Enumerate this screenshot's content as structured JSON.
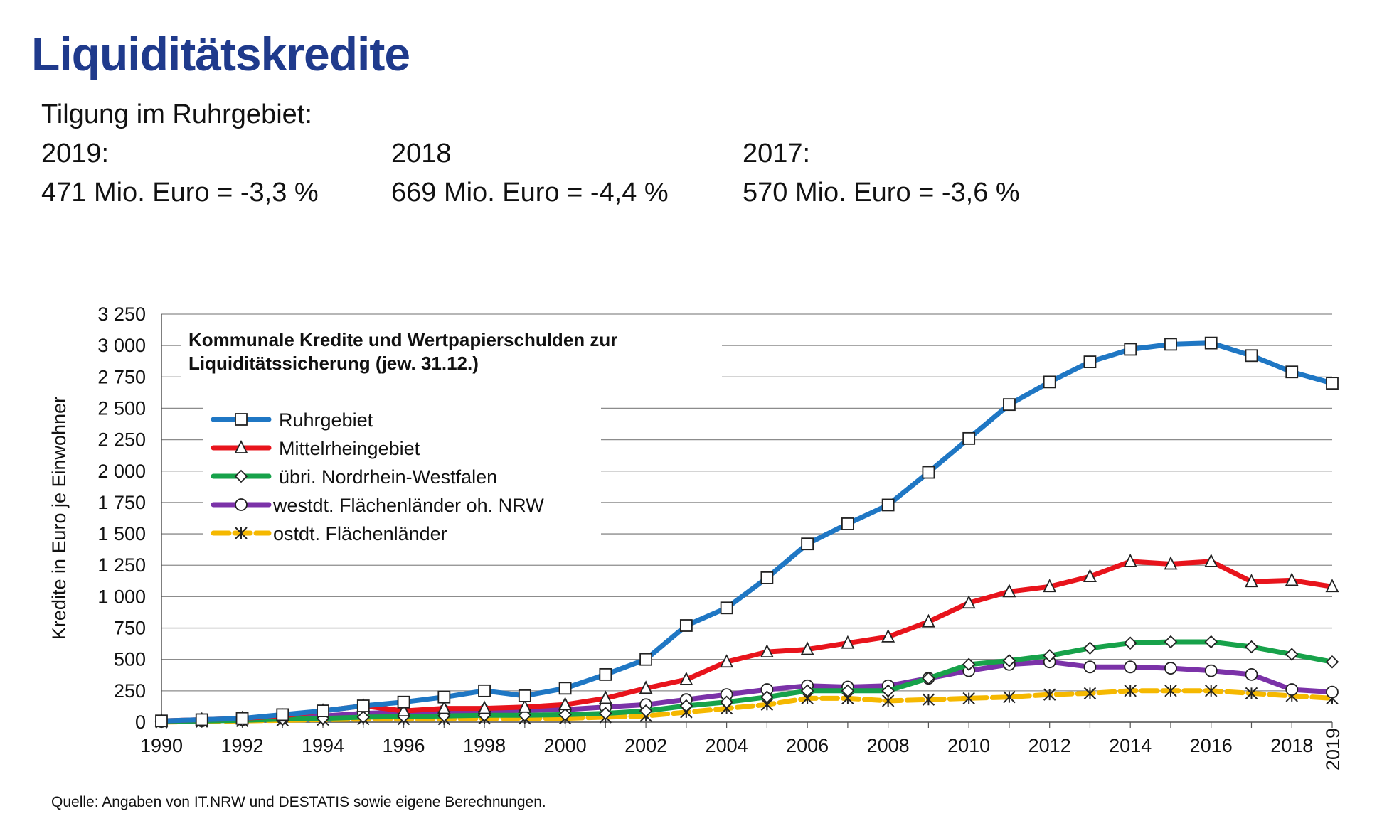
{
  "page": {
    "title": "Liquiditätskredite",
    "subtitle": "Tilgung im Ruhrgebiet:",
    "columns": [
      {
        "year": "2019:",
        "value": "471 Mio. Euro = -3,3 %"
      },
      {
        "year": "2018",
        "value": "669 Mio. Euro = -4,4 %"
      },
      {
        "year": "2017:",
        "value": "570 Mio. Euro = -3,6 %"
      }
    ],
    "source": "Quelle: Angaben von IT.NRW und DESTATIS sowie eigene Berechnungen."
  },
  "chart_data": {
    "type": "line",
    "title": [
      "Kommunale Kredite und Wertpapierschulden zur",
      "Liquiditätssicherung (jew. 31.12.)"
    ],
    "ylabel": "Kredite in Euro je Einwohner",
    "xlabel": "",
    "ylim": [
      0,
      3250
    ],
    "yticks": [
      0,
      250,
      500,
      750,
      1000,
      1250,
      1500,
      1750,
      2000,
      2250,
      2500,
      2750,
      3000,
      3250
    ],
    "ytick_labels": [
      "0",
      "250",
      "500",
      "750",
      "1 000",
      "1 250",
      "1 500",
      "1 750",
      "2 000",
      "2 250",
      "2 500",
      "2 750",
      "3 000",
      "3 250"
    ],
    "x": [
      1990,
      1991,
      1992,
      1993,
      1994,
      1995,
      1996,
      1997,
      1998,
      1999,
      2000,
      2001,
      2002,
      2003,
      2004,
      2005,
      2006,
      2007,
      2008,
      2009,
      2010,
      2011,
      2012,
      2013,
      2014,
      2015,
      2016,
      2017,
      2018,
      2019
    ],
    "xticks": [
      1990,
      1992,
      1994,
      1996,
      1998,
      2000,
      2002,
      2004,
      2006,
      2008,
      2010,
      2012,
      2014,
      2016,
      2018
    ],
    "xtick_last": "2019",
    "grid": "horizontal",
    "legend_position": "upper-left",
    "series": [
      {
        "name": "Ruhrgebiet",
        "color": "#1f77c4",
        "marker": "square",
        "values": [
          10,
          20,
          30,
          60,
          90,
          130,
          160,
          200,
          250,
          210,
          270,
          380,
          500,
          770,
          910,
          1150,
          1420,
          1580,
          1730,
          1990,
          2260,
          2530,
          2710,
          2870,
          2970,
          3010,
          3020,
          2920,
          2790,
          2700
        ]
      },
      {
        "name": "Mittelrheingebiet",
        "color": "#e8141c",
        "marker": "triangle",
        "values": [
          10,
          20,
          30,
          50,
          90,
          130,
          90,
          110,
          110,
          120,
          140,
          190,
          270,
          340,
          480,
          560,
          580,
          630,
          680,
          800,
          950,
          1040,
          1080,
          1160,
          1280,
          1260,
          1280,
          1120,
          1130,
          1080
        ]
      },
      {
        "name": "übri. Nordrhein-Westfalen",
        "color": "#17a24a",
        "marker": "diamond",
        "values": [
          5,
          10,
          15,
          25,
          30,
          40,
          45,
          50,
          55,
          55,
          60,
          70,
          90,
          130,
          160,
          200,
          250,
          250,
          250,
          350,
          460,
          490,
          530,
          590,
          630,
          640,
          640,
          600,
          540,
          480
        ]
      },
      {
        "name": "westdt. Flächenländer oh. NRW",
        "color": "#7b32a8",
        "marker": "circle",
        "values": [
          5,
          10,
          20,
          30,
          50,
          70,
          80,
          90,
          90,
          95,
          100,
          120,
          140,
          180,
          220,
          260,
          290,
          280,
          290,
          350,
          410,
          460,
          480,
          440,
          440,
          430,
          410,
          380,
          260,
          240
        ]
      },
      {
        "name": "ostdt. Flächenländer",
        "color": "#f5b800",
        "marker": "asterisk",
        "dashed": true,
        "values": [
          0,
          5,
          10,
          15,
          20,
          25,
          25,
          25,
          30,
          30,
          30,
          40,
          50,
          80,
          110,
          140,
          190,
          190,
          170,
          180,
          190,
          200,
          220,
          230,
          250,
          250,
          250,
          230,
          210,
          190
        ]
      }
    ]
  }
}
